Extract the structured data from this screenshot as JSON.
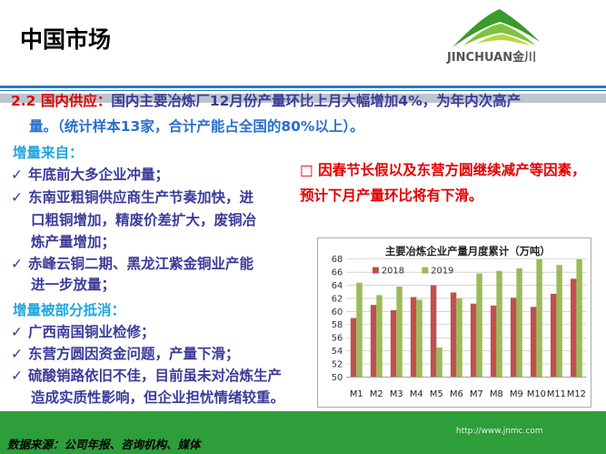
{
  "header": {
    "title": "中国市场",
    "logo_text": "JINCHUAN金川"
  },
  "intro": {
    "label": "2.2 国内供应：",
    "line1": "国内主要冶炼厂12月份产量环比上月大幅增加4%，为年内次高产",
    "line2": "量。（统计样本13家，合计产能占全国的80%以上）。"
  },
  "increase": {
    "heading": "增量来自：",
    "items": [
      [
        "年底前大多企业冲量；"
      ],
      [
        "东南亚粗铜供应商生产节奏加快，进",
        "口粗铜增加，精废价差扩大，废铜冶",
        "炼产量增加；"
      ],
      [
        "赤峰云铜二期、黑龙江紫金铜业产能",
        "进一步放量；"
      ]
    ]
  },
  "offset": {
    "heading": "增量被部分抵消：",
    "items": [
      [
        "广西南国铜业检修；"
      ],
      [
        "东营方圆因资金问题，产量下滑；"
      ],
      [
        "硫酸销路依旧不佳，目前虽未对冶炼生产",
        "造成实质性影响，但企业担忧情绪较重。"
      ]
    ]
  },
  "note": {
    "bullet": "□",
    "line1": "因春节长假以及东营方圆继续减产等因素，",
    "line2": "预计下月产量环比将有下滑。"
  },
  "footer": {
    "source": "数据来源：公司年报、咨询机构、媒体",
    "url": "http://www.jnmc.com"
  },
  "chart_data": {
    "type": "bar",
    "title": "主要冶炼企业产量月度累计（万吨）",
    "categories": [
      "M1",
      "M2",
      "M3",
      "M4",
      "M5",
      "M6",
      "M7",
      "M8",
      "M9",
      "M10",
      "M11",
      "M12"
    ],
    "series": [
      {
        "name": "2018",
        "color": "#c0504d",
        "values": [
          59,
          61,
          60.2,
          62.2,
          64,
          62.9,
          61.2,
          60.9,
          62.1,
          60.7,
          62.7,
          65
        ]
      },
      {
        "name": "2019",
        "color": "#9bbb59",
        "values": [
          64.4,
          62.5,
          63.8,
          61.8,
          54.5,
          62,
          65.8,
          66.2,
          66.6,
          68,
          67.1,
          68
        ]
      }
    ],
    "ylim": [
      50,
      68
    ],
    "yticks": [
      50,
      52,
      54,
      56,
      58,
      60,
      62,
      64,
      66,
      68
    ],
    "grid": true,
    "legend": "top-left"
  }
}
